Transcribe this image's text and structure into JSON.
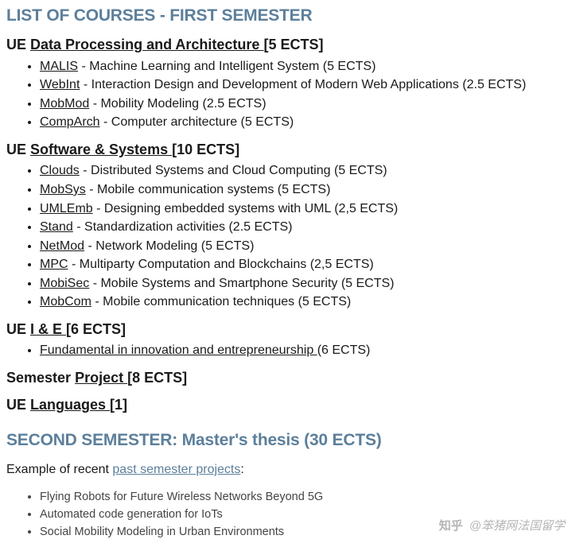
{
  "colors": {
    "accent": "#5c7f9b",
    "text": "#1a1a1a",
    "background": "#ffffff"
  },
  "sem1": {
    "header": "LIST OF COURSES - FIRST SEMESTER",
    "ues": [
      {
        "prefix": "UE ",
        "link": "Data Processing and Architecture ",
        "ects": "[5 ECTS]",
        "courses": [
          {
            "code": "MALIS",
            "desc": " - Machine Learning and Intelligent System (5 ECTS)"
          },
          {
            "code": "WebInt",
            "desc": " - Interaction Design and Development of Modern Web Applications (2.5 ECTS)"
          },
          {
            "code": "MobMod",
            "desc": " - Mobility Modeling (2.5 ECTS)"
          },
          {
            "code": "CompArch",
            "desc": " - Computer architecture (5 ECTS)"
          }
        ]
      },
      {
        "prefix": "UE ",
        "link": "Software & Systems ",
        "ects": "[10 ECTS]",
        "courses": [
          {
            "code": "Clouds",
            "desc": " - Distributed Systems and Cloud Computing (5 ECTS)"
          },
          {
            "code": "MobSys",
            "desc": " - Mobile communication systems (5 ECTS)"
          },
          {
            "code": "UMLEmb",
            "desc": " - Designing embedded systems with UML (2,5 ECTS)"
          },
          {
            "code": "Stand",
            "desc": " - Standardization activities (2.5 ECTS)"
          },
          {
            "code": "NetMod",
            "desc": " - Network Modeling (5 ECTS)"
          },
          {
            "code": "MPC",
            "desc": " - Multiparty Computation and Blockchains (2,5 ECTS)"
          },
          {
            "code": "MobiSec",
            "desc": " - Mobile Systems and Smartphone Security (5 ECTS)"
          },
          {
            "code": "MobCom",
            "desc": " - Mobile communication techniques (5 ECTS)"
          }
        ]
      },
      {
        "prefix": "UE ",
        "link": "I & E ",
        "ects": "[6 ECTS]",
        "courses": [
          {
            "code": "Fundamental in innovation and entrepreneurship ",
            "desc": "(6 ECTS)"
          }
        ]
      },
      {
        "prefix": "Semester ",
        "link": "Project ",
        "ects": "[8 ECTS]",
        "courses": []
      },
      {
        "prefix": "UE ",
        "link": "Languages ",
        "ects": "[1]",
        "courses": []
      }
    ]
  },
  "sem2": {
    "header": "SECOND SEMESTER: Master's thesis (30 ECTS)",
    "intro_pre": "Example of recent ",
    "intro_link": "past semester projects",
    "intro_post": ":",
    "projects": [
      "Flying Robots for Future Wireless Networks Beyond 5G",
      "Automated code generation for IoTs",
      "Social Mobility Modeling in Urban Environments"
    ]
  },
  "watermark": {
    "logo": "知乎",
    "text": "@笨猪网法国留学"
  }
}
